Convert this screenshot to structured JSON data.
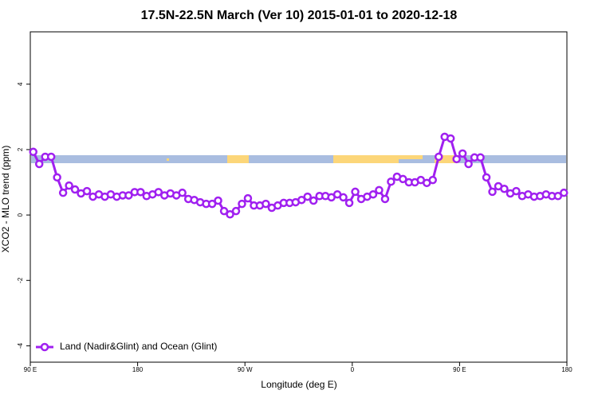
{
  "chart_data": {
    "type": "line",
    "title": "17.5N-22.5N March (Ver 10)   2015-01-01 to 2020-12-18",
    "x_label": "Longitude (deg E)",
    "y_label": "XCO2 - MLO trend (ppm)",
    "xlim": [
      90,
      540
    ],
    "xticks": [
      {
        "value": 90,
        "label": "90 E"
      },
      180,
      {
        "value": 270,
        "label": "90 W"
      },
      {
        "value": 360,
        "label": "0"
      },
      {
        "value": 450,
        "label": "90 E"
      },
      {
        "value": 540,
        "label": "180"
      }
    ],
    "ylim": [
      -4.5,
      5.6
    ],
    "yticks": [
      -4,
      -2,
      0,
      2,
      4
    ],
    "legend_position": "bottom-left",
    "x": [
      92.5,
      97.5,
      102.5,
      107.5,
      112.5,
      117.5,
      122.5,
      127.5,
      132.5,
      137.5,
      142.5,
      147.5,
      152.5,
      157.5,
      162.5,
      167.5,
      172.5,
      177.5,
      182.5,
      187.5,
      192.5,
      197.5,
      202.5,
      207.5,
      212.5,
      217.5,
      222.5,
      227.5,
      232.5,
      237.5,
      242.5,
      247.5,
      252.5,
      257.5,
      262.5,
      267.5,
      272.5,
      277.5,
      282.5,
      287.5,
      292.5,
      297.5,
      302.5,
      307.5,
      312.5,
      317.5,
      322.5,
      327.5,
      332.5,
      337.5,
      342.5,
      347.5,
      352.5,
      357.5,
      362.5,
      367.5,
      372.5,
      377.5,
      382.5,
      387.5,
      392.5,
      397.5,
      402.5,
      407.5,
      412.5,
      417.5,
      422.5,
      427.5,
      432.5,
      437.5,
      442.5,
      447.5,
      452.5,
      457.5,
      462.5,
      467.5,
      472.5,
      477.5,
      482.5,
      487.5,
      492.5,
      497.5,
      502.5,
      507.5,
      512.5,
      517.5,
      522.5,
      527.5,
      532.5,
      537.5
    ],
    "series": [
      {
        "name": "Land (Nadir&Glint) and Ocean (Glint)",
        "color": "#a020f0",
        "values": [
          1.93,
          1.56,
          1.78,
          1.78,
          1.15,
          0.68,
          0.9,
          0.78,
          0.66,
          0.73,
          0.56,
          0.63,
          0.56,
          0.63,
          0.56,
          0.6,
          0.6,
          0.7,
          0.7,
          0.58,
          0.63,
          0.7,
          0.6,
          0.66,
          0.6,
          0.68,
          0.49,
          0.46,
          0.39,
          0.34,
          0.34,
          0.44,
          0.12,
          0.02,
          0.12,
          0.34,
          0.51,
          0.29,
          0.29,
          0.34,
          0.22,
          0.29,
          0.37,
          0.37,
          0.39,
          0.46,
          0.56,
          0.44,
          0.58,
          0.58,
          0.54,
          0.63,
          0.54,
          0.37,
          0.71,
          0.49,
          0.56,
          0.63,
          0.76,
          0.49,
          1.02,
          1.17,
          1.1,
          1.0,
          1.0,
          1.07,
          0.98,
          1.07,
          1.78,
          2.39,
          2.34,
          1.71,
          1.88,
          1.56,
          1.76,
          1.76,
          1.15,
          0.71,
          0.88,
          0.8,
          0.66,
          0.73,
          0.58,
          0.63,
          0.56,
          0.58,
          0.63,
          0.58,
          0.58,
          0.68
        ]
      }
    ]
  }
}
